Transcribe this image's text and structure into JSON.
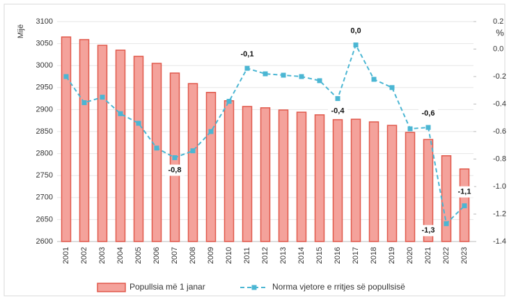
{
  "chart_data": {
    "type": "bar_line",
    "y_label": "Mijë",
    "y2_label": "%",
    "categories": [
      "2001",
      "2002",
      "2003",
      "2004",
      "2005",
      "2006",
      "2007",
      "2008",
      "2009",
      "2010",
      "2011",
      "2012",
      "2013",
      "2014",
      "2015",
      "2016",
      "2017",
      "2018",
      "2019",
      "2020",
      "2021",
      "2022",
      "2023"
    ],
    "series": [
      {
        "name": "Popullsia më 1 janar",
        "type": "bar",
        "color": "#f4a29b",
        "edge_color": "#e0584b",
        "values": [
          3065,
          3059,
          3046,
          3035,
          3021,
          3005,
          2983,
          2959,
          2939,
          2920,
          2907,
          2904,
          2899,
          2894,
          2888,
          2877,
          2878,
          2872,
          2864,
          2848,
          2832,
          2795,
          2765
        ]
      },
      {
        "name": "Norma vjetore e rritjes së popullsisë",
        "type": "line",
        "axis": "y2",
        "color": "#4bb6d3",
        "values": [
          -0.2,
          -0.39,
          -0.35,
          -0.47,
          -0.54,
          -0.72,
          -0.79,
          -0.74,
          -0.6,
          -0.38,
          -0.14,
          -0.18,
          -0.19,
          -0.2,
          -0.23,
          -0.36,
          0.03,
          -0.22,
          -0.28,
          -0.58,
          -0.57,
          -1.27,
          -1.14
        ],
        "value_labels": [
          null,
          null,
          null,
          null,
          null,
          null,
          "-0,8",
          null,
          null,
          null,
          "-0,1",
          null,
          null,
          null,
          null,
          "-0,4",
          "0,0",
          null,
          null,
          null,
          "-0,6",
          "-1,3",
          "-1,1"
        ]
      }
    ],
    "ylim": [
      2600,
      3100
    ],
    "yticks": [
      2600,
      2650,
      2700,
      2750,
      2800,
      2850,
      2900,
      2950,
      3000,
      3050,
      3100
    ],
    "y2lim": [
      -1.4,
      0.2
    ],
    "y2ticks": [
      -1.4,
      -1.2,
      {
        "value": -1,
        "label": "-1.0"
      },
      -0.8,
      -0.6,
      -0.4,
      -0.2,
      {
        "value": 0,
        "label": "0.0"
      },
      0.2
    ],
    "grid": true,
    "legend": "bottom"
  }
}
